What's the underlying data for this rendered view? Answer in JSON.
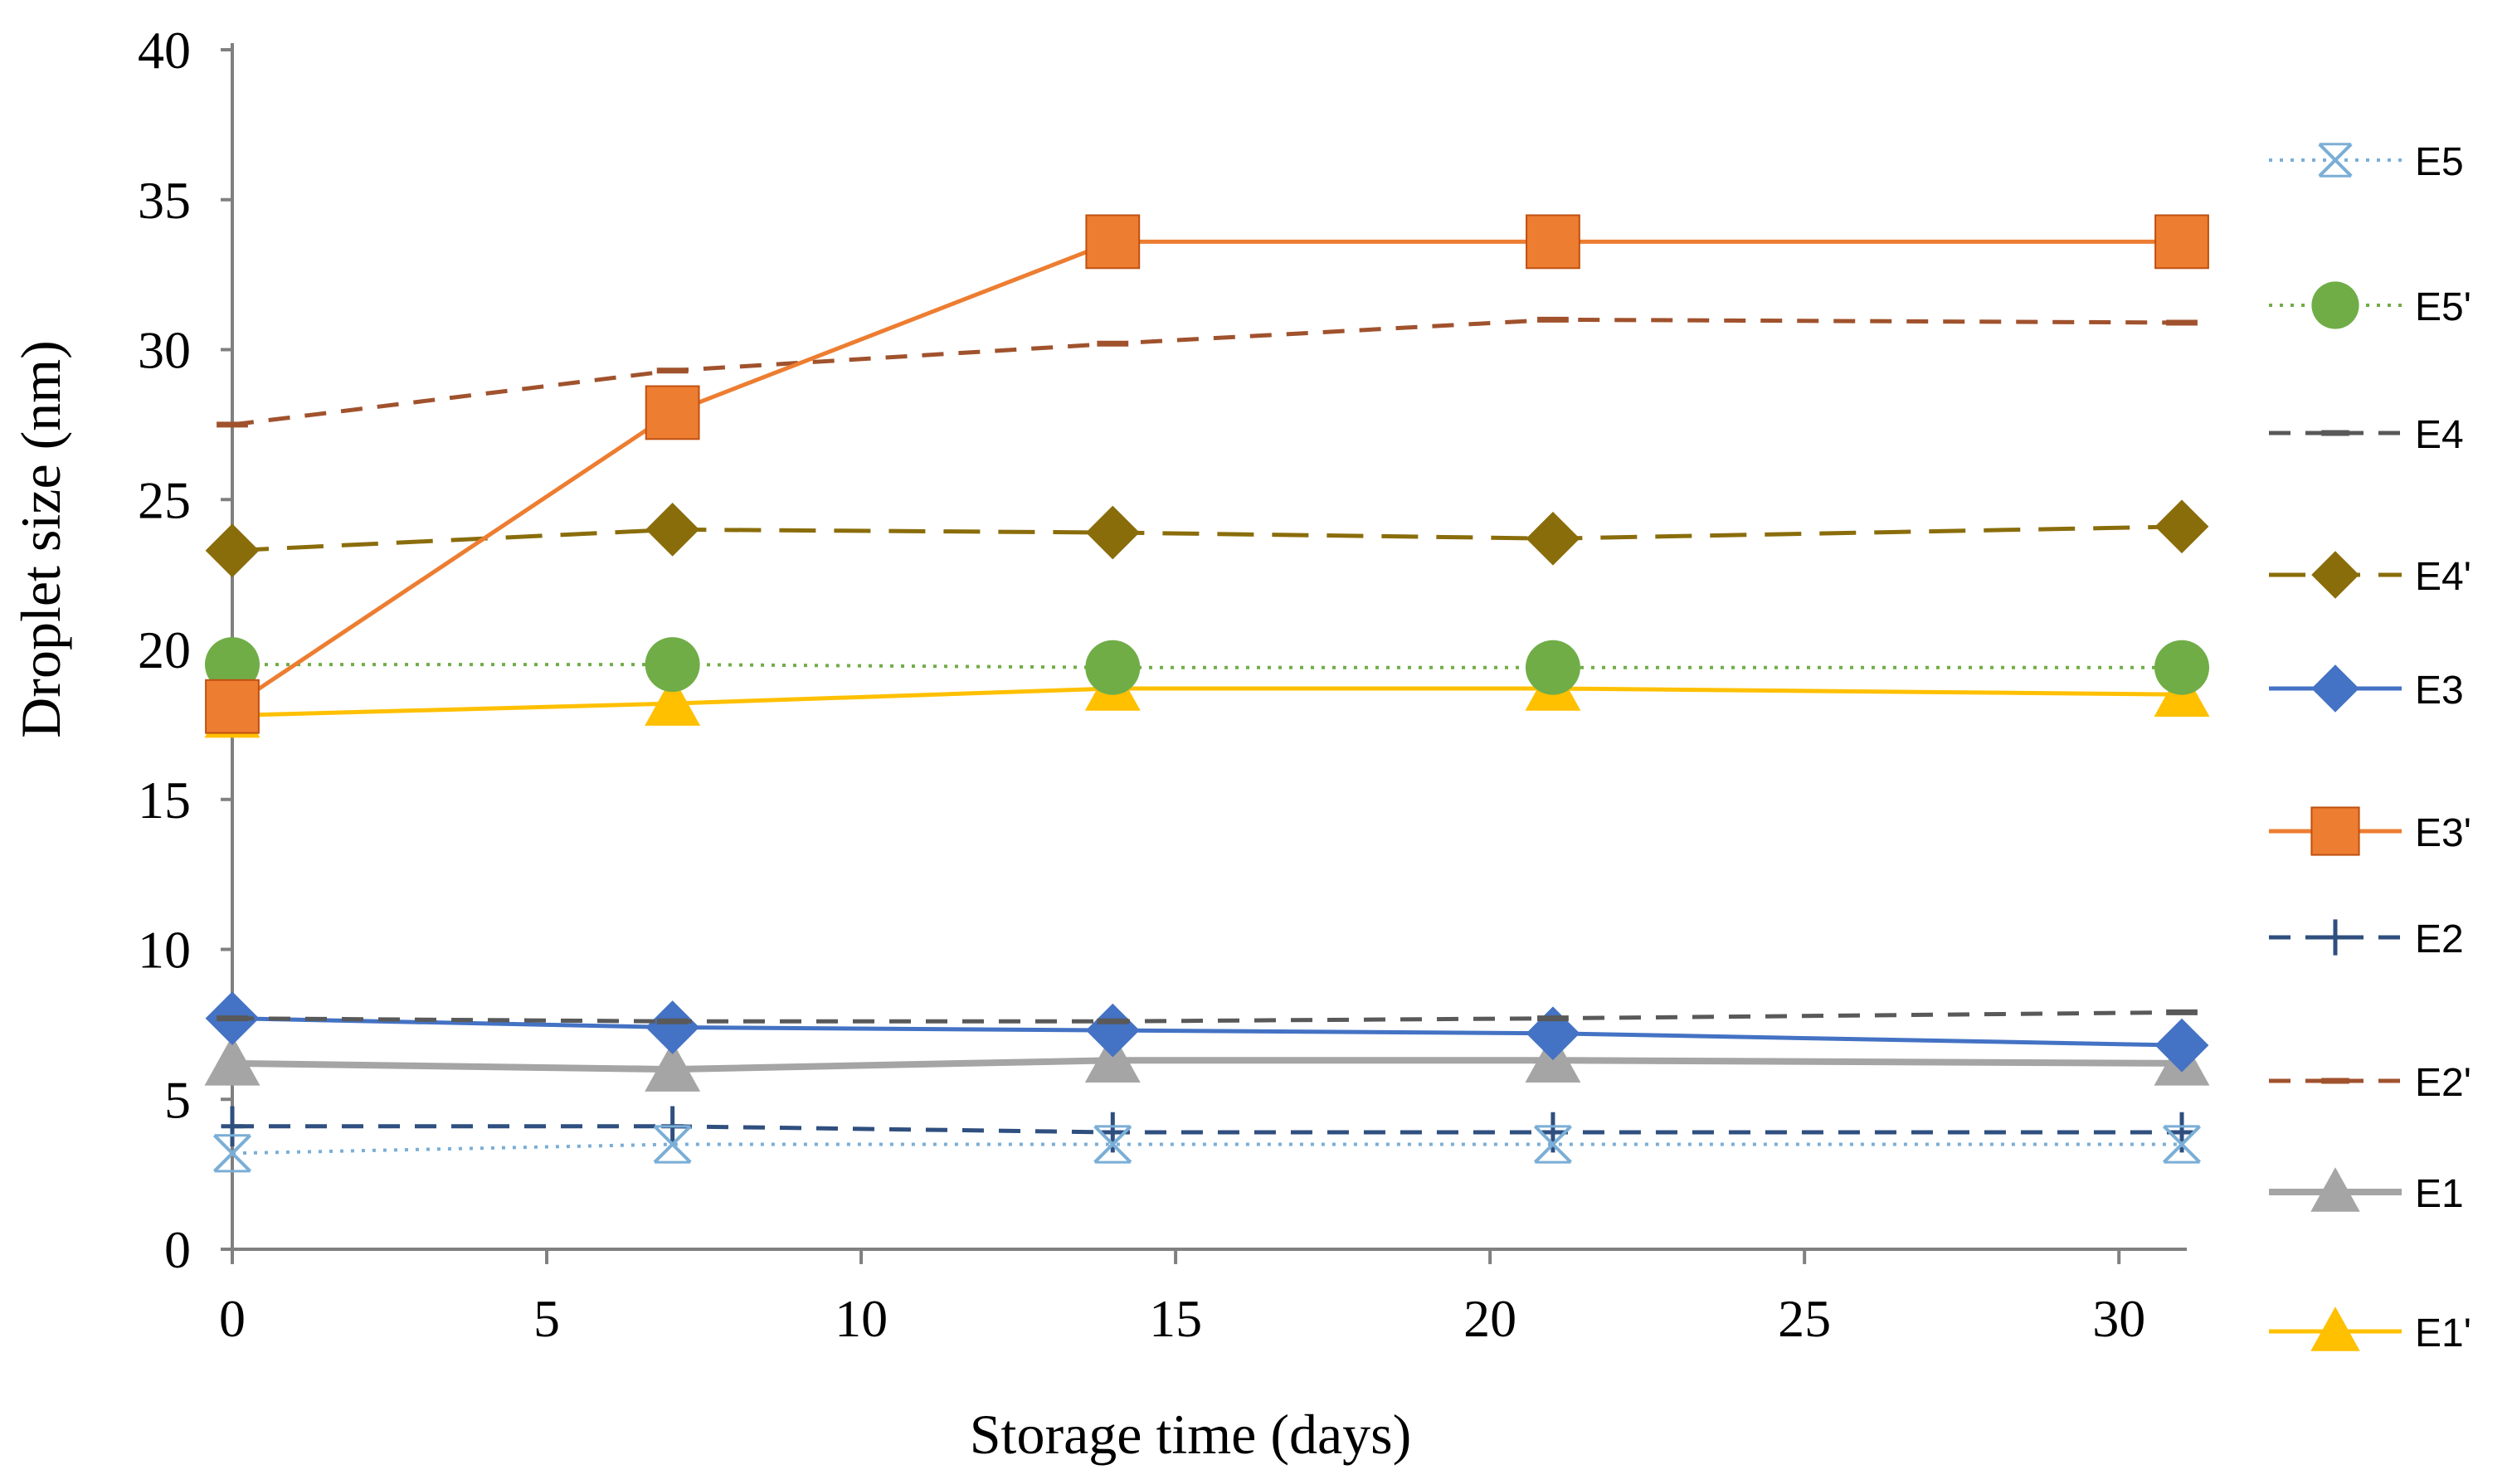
{
  "chart_data": {
    "type": "line",
    "title": "",
    "xlabel": "Storage time (days)",
    "ylabel": "Droplet size (nm)",
    "xlim": [
      0,
      31
    ],
    "ylim": [
      0,
      40
    ],
    "xticks": [
      0,
      5,
      10,
      15,
      20,
      25,
      30
    ],
    "yticks": [
      0,
      5,
      10,
      15,
      20,
      25,
      30,
      35,
      40
    ],
    "xtick_labels": [
      "0",
      "5",
      "10",
      "15",
      "20",
      "25",
      "30"
    ],
    "ytick_labels": [
      "0",
      "5",
      "10",
      "15",
      "20",
      "25",
      "30",
      "35",
      "40"
    ],
    "x": [
      0,
      7,
      14,
      21,
      31
    ],
    "legend_position": "right",
    "series": [
      {
        "name": "E5",
        "values": [
          3.2,
          3.5,
          3.5,
          3.5,
          3.5
        ],
        "color": "#7aaed6",
        "dash": "dot",
        "marker": "asterisk"
      },
      {
        "name": "E5'",
        "values": [
          19.5,
          19.5,
          19.4,
          19.4,
          19.4
        ],
        "color": "#70ad47",
        "dash": "dot",
        "marker": "circle"
      },
      {
        "name": "E4",
        "values": [
          7.7,
          7.6,
          7.6,
          7.7,
          7.9
        ],
        "color": "#595959",
        "dash": "dash",
        "marker": "dash"
      },
      {
        "name": "E4'",
        "values": [
          23.3,
          24.0,
          23.9,
          23.7,
          24.1
        ],
        "color": "#8a6d0b",
        "dash": "longdash",
        "marker": "diamond"
      },
      {
        "name": "E3",
        "values": [
          7.7,
          7.4,
          7.3,
          7.2,
          6.8
        ],
        "color": "#4472c4",
        "dash": "solid",
        "marker": "diamond"
      },
      {
        "name": "E3'",
        "values": [
          18.1,
          27.9,
          33.6,
          33.6,
          33.6
        ],
        "color": "#ed7d31",
        "dash": "solid",
        "marker": "square"
      },
      {
        "name": "E2",
        "values": [
          4.1,
          4.1,
          3.9,
          3.9,
          3.9
        ],
        "color": "#2f4f7f",
        "dash": "dash",
        "marker": "plus"
      },
      {
        "name": "E2'",
        "values": [
          27.5,
          29.3,
          30.2,
          31.0,
          30.9
        ],
        "color": "#a0522d",
        "dash": "dash",
        "marker": "dash"
      },
      {
        "name": "E1",
        "values": [
          6.2,
          6.0,
          6.3,
          6.3,
          6.2
        ],
        "color": "#a5a5a5",
        "dash": "solid",
        "marker": "triangle"
      },
      {
        "name": "E1'",
        "values": [
          17.8,
          18.2,
          18.7,
          18.7,
          18.5
        ],
        "color": "#ffc000",
        "dash": "solid",
        "marker": "triangle"
      }
    ]
  }
}
